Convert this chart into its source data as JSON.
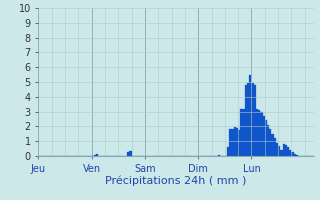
{
  "xlabel": "Précipitations 24h ( mm )",
  "background_color": "#cce8e8",
  "bar_color": "#1155cc",
  "ylim": [
    0,
    10
  ],
  "yticks": [
    0,
    1,
    2,
    3,
    4,
    5,
    6,
    7,
    8,
    9,
    10
  ],
  "day_labels": [
    "Jeu",
    "Ven",
    "Sam",
    "Dim",
    "Lun"
  ],
  "day_positions": [
    0,
    24,
    48,
    72,
    96
  ],
  "n_bars": 120,
  "values": [
    0,
    0,
    0,
    0,
    0,
    0,
    0,
    0,
    0,
    0,
    0,
    0,
    0,
    0,
    0,
    0,
    0,
    0,
    0,
    0,
    0,
    0,
    0,
    0,
    0,
    0.1,
    0.15,
    0,
    0,
    0,
    0,
    0,
    0,
    0,
    0,
    0,
    0,
    0,
    0,
    0,
    0.3,
    0.35,
    0,
    0,
    0,
    0,
    0,
    0,
    0,
    0,
    0,
    0,
    0,
    0,
    0,
    0,
    0,
    0,
    0,
    0,
    0,
    0,
    0,
    0,
    0,
    0,
    0,
    0,
    0,
    0,
    0,
    0,
    0,
    0,
    0,
    0,
    0,
    0,
    0,
    0,
    0,
    0.05,
    0,
    0,
    0,
    0.6,
    1.8,
    1.85,
    1.95,
    1.9,
    1.75,
    3.2,
    3.2,
    4.8,
    4.9,
    5.5,
    4.9,
    4.8,
    3.2,
    3.1,
    3.0,
    2.7,
    2.4,
    2.1,
    1.8,
    1.5,
    1.2,
    0.9,
    0.7,
    0.4,
    0.8,
    0.75,
    0.6,
    0.4,
    0.25,
    0.15,
    0.05,
    0,
    0,
    0,
    0,
    0,
    0,
    0
  ],
  "grid_color": "#aacccc",
  "dark_grid_color": "#88aaaa",
  "xlabel_color": "#2244aa",
  "tick_color": "#2244aa",
  "ytick_color": "#333333",
  "xlabel_fontsize": 8,
  "ytick_fontsize": 7,
  "xtick_fontsize": 7
}
